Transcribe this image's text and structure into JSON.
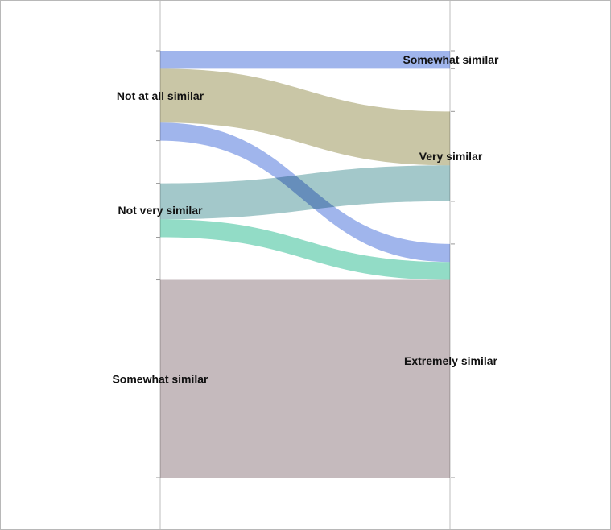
{
  "chart_data": {
    "type": "sankey",
    "left_nodes": [
      "Not at all similar",
      "Not very similar",
      "Somewhat similar"
    ],
    "right_nodes": [
      "Somewhat similar",
      "Very similar",
      "Extremely similar"
    ],
    "links": [
      {
        "source": "Not at all similar",
        "target": "Somewhat similar",
        "value": 1,
        "color": "#a0b5ec"
      },
      {
        "source": "Not at all similar",
        "target": "Very similar",
        "value": 3,
        "color": "#c9c6a6"
      },
      {
        "source": "Not at all similar",
        "target": "Extremely similar",
        "value": 1,
        "color": "#a0b5ec"
      },
      {
        "source": "Not very similar",
        "target": "Very similar",
        "value": 2,
        "color": "#a3c8ca"
      },
      {
        "source": "Not very similar",
        "target": "Extremely similar",
        "value": 1,
        "color": "#92dcc6"
      },
      {
        "source": "Somewhat similar",
        "target": "Extremely similar",
        "value": 11,
        "color": "#c5babd"
      }
    ]
  }
}
